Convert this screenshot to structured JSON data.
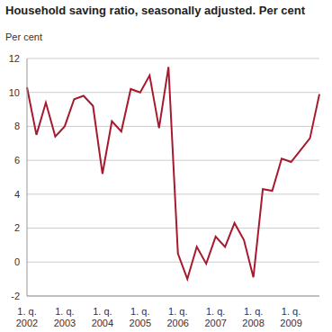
{
  "chart_data": {
    "type": "line",
    "title": "Household saving ratio, seasonally adjusted. Per cent",
    "y_label": "Per cent",
    "categories": [
      "1. q. 2002",
      null,
      null,
      null,
      "1. q. 2003",
      null,
      null,
      null,
      "1. q. 2004",
      null,
      null,
      null,
      "1. q. 2005",
      null,
      null,
      null,
      "1. q. 2006",
      null,
      null,
      null,
      "1. q. 2007",
      null,
      null,
      null,
      "1. q. 2008",
      null,
      null,
      null,
      "1. q. 2009",
      null,
      null,
      null
    ],
    "values": [
      10.3,
      7.5,
      9.4,
      7.4,
      8.0,
      9.6,
      9.8,
      9.2,
      5.2,
      8.3,
      7.7,
      10.2,
      10.0,
      11.0,
      7.9,
      11.5,
      0.5,
      -1.0,
      0.9,
      -0.1,
      1.5,
      0.9,
      2.3,
      1.3,
      -0.9,
      4.3,
      4.2,
      6.1,
      5.9,
      6.6,
      7.3,
      9.9
    ],
    "color": "#a6192e",
    "ylim": [
      -2,
      12
    ],
    "yticks": [
      -2,
      0,
      2,
      4,
      6,
      8,
      10,
      12
    ],
    "grid": true
  }
}
